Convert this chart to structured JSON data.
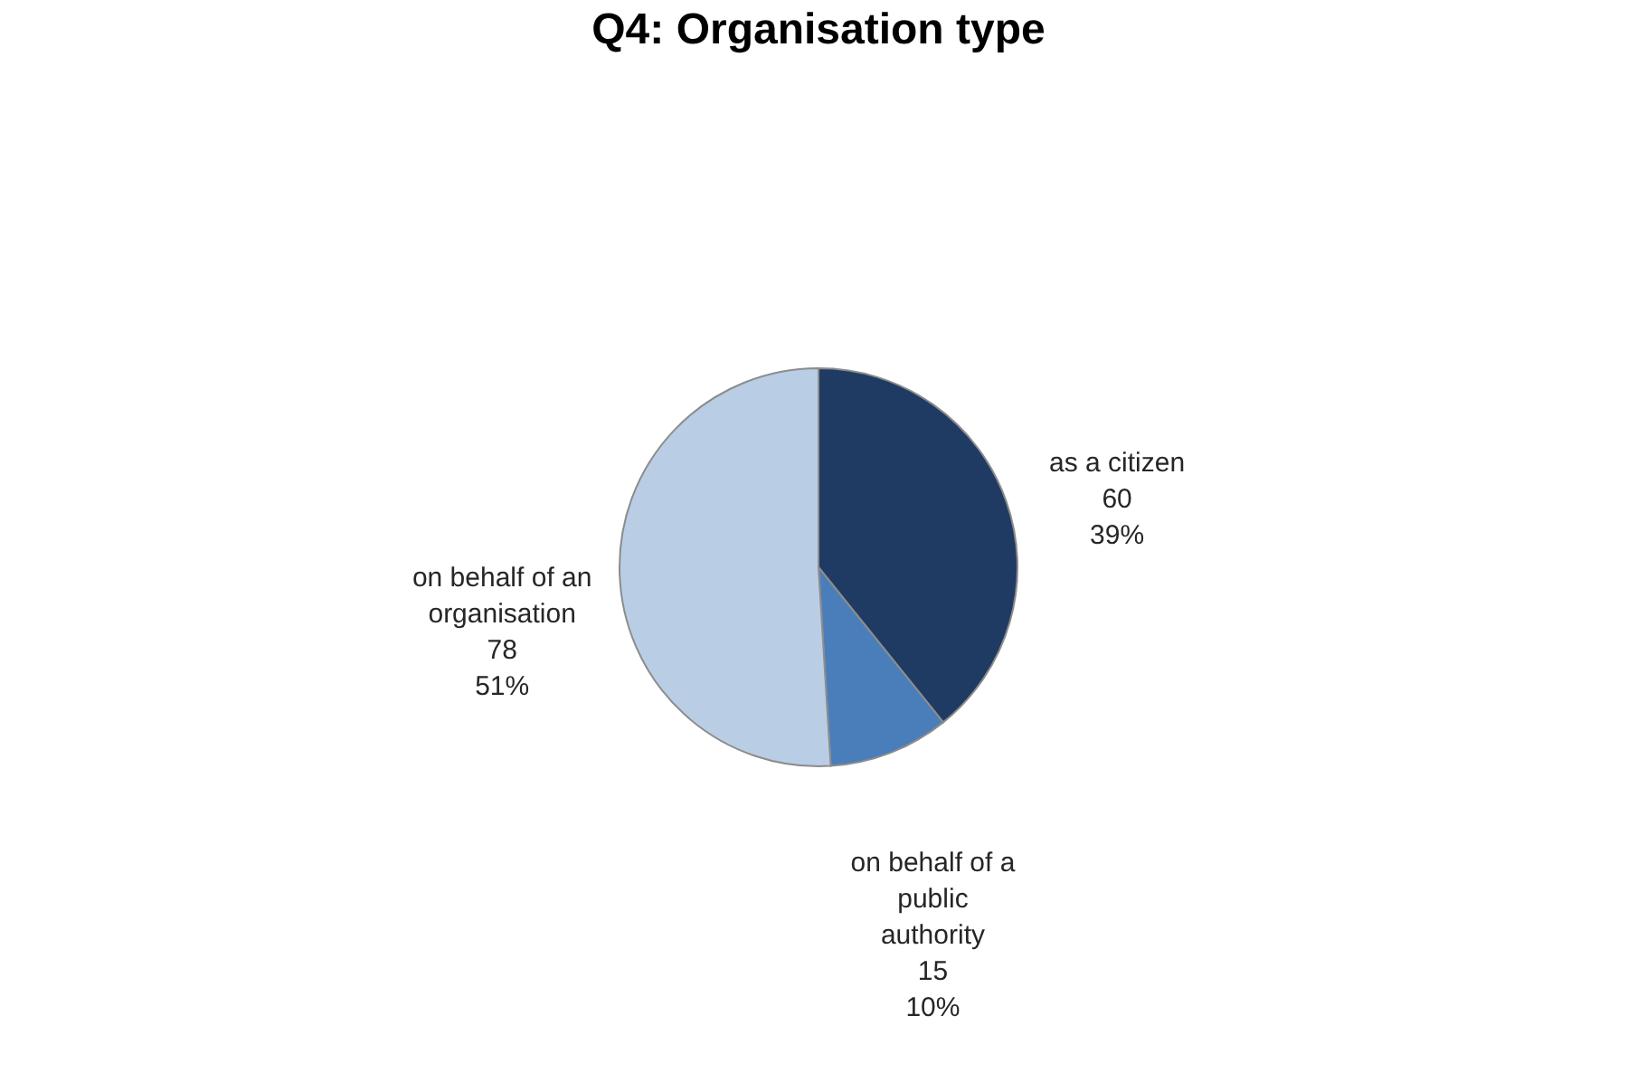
{
  "chart_data": {
    "type": "pie",
    "title": "Q4: Organisation type",
    "categories": [
      "as a citizen",
      "on behalf of a\npublic\nauthority",
      "on behalf of an\norganisation"
    ],
    "values": [
      60,
      15,
      78
    ],
    "colors": [
      "#1f3b64",
      "#4a7ebb",
      "#b9cde5"
    ],
    "value_labels": [
      "60\n39%",
      "15\n10%",
      "78\n51%"
    ],
    "legend": false
  }
}
